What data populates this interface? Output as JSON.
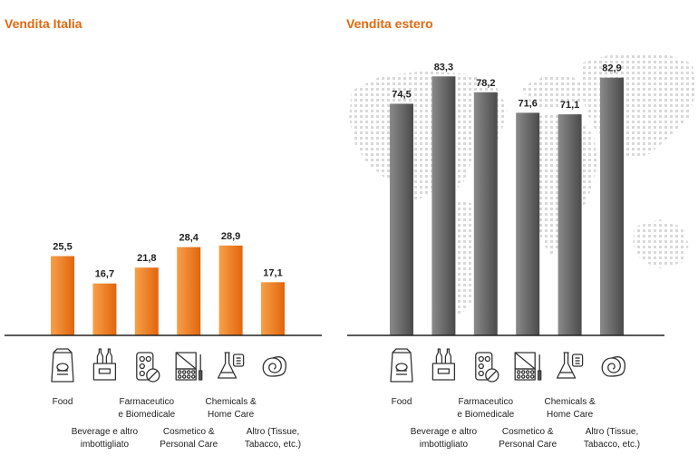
{
  "colors": {
    "accent": "#e2680f",
    "italy_bar_light": "#f7a04a",
    "italy_bar_dark": "#e2650c",
    "estero_bar_light": "#8a8a8a",
    "estero_bar_dark": "#4a4a4a",
    "axis": "#222222",
    "map_dots": "#d9d9d9"
  },
  "category_icons": [
    "food-bag-icon",
    "bottles-crate-icon",
    "pills-blister-icon",
    "makeup-palette-icon",
    "flask-bottle-icon",
    "tissue-roll-icon"
  ],
  "category_labels": [
    [
      "Food"
    ],
    [
      "Beverage e altro",
      "imbottigliato"
    ],
    [
      "Farmaceutico",
      "e Biomedicale"
    ],
    [
      "Cosmetico &",
      "Personal Care"
    ],
    [
      "Chemicals &",
      "Home Care"
    ],
    [
      "Altro (Tissue,",
      "Tabacco, etc.)"
    ]
  ],
  "chart_data": [
    {
      "type": "bar",
      "title": "Vendita Italia",
      "categories": [
        "Food",
        "Beverage e altro imbottigliato",
        "Farmaceutico e Biomedicale",
        "Cosmetico & Personal Care",
        "Chemicals & Home Care",
        "Altro (Tissue, Tabacco, etc.)"
      ],
      "values": [
        25.5,
        16.7,
        21.8,
        28.4,
        28.9,
        17.1
      ],
      "value_labels": [
        "25,5",
        "16,7",
        "21,8",
        "28,4",
        "28,9",
        "17,1"
      ],
      "ylim": [
        0,
        90
      ],
      "grid": false,
      "legend": "none"
    },
    {
      "type": "bar",
      "title": "Vendita estero",
      "categories": [
        "Food",
        "Beverage e altro imbottigliato",
        "Farmaceutico e Biomedicale",
        "Cosmetico & Personal Care",
        "Chemicals & Home Care",
        "Altro (Tissue, Tabacco, etc.)"
      ],
      "values": [
        74.5,
        83.3,
        78.2,
        71.6,
        71.1,
        82.9
      ],
      "value_labels": [
        "74,5",
        "83,3",
        "78,2",
        "71,6",
        "71,1",
        "82,9"
      ],
      "ylim": [
        0,
        90
      ],
      "grid": false,
      "legend": "none",
      "background": "world-map-dots"
    }
  ]
}
